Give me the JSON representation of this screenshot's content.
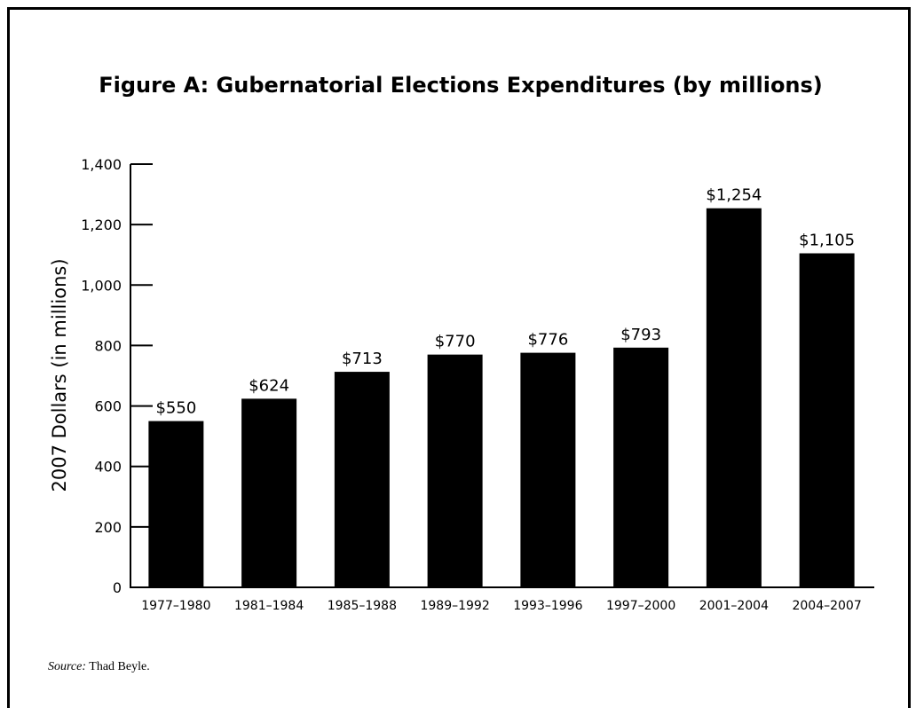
{
  "chart_data": {
    "type": "bar",
    "title": "Figure A: Gubernatorial Elections Expenditures (by millions)",
    "xlabel": "",
    "ylabel": "2007 Dollars (in millions)",
    "categories": [
      "1977–1980",
      "1981–1984",
      "1985–1988",
      "1989–1992",
      "1993–1996",
      "1997–2000",
      "2001–2004",
      "2004–2007"
    ],
    "values": [
      550,
      624,
      713,
      770,
      776,
      793,
      1254,
      1105
    ],
    "data_labels": [
      "$550",
      "$624",
      "$713",
      "$770",
      "$776",
      "$793",
      "$1,254",
      "$1,105"
    ],
    "ylim": [
      0,
      1400
    ],
    "yticks": [
      0,
      200,
      400,
      600,
      800,
      1000,
      1200,
      1400
    ],
    "ytick_labels": [
      "0",
      "200",
      "400",
      "600",
      "800",
      "1,000",
      "1,200",
      "1,400"
    ],
    "bar_color": "#000000",
    "grid": false,
    "legend": "none"
  },
  "source": {
    "prefix": "Source:",
    "text": " Thad Beyle."
  }
}
